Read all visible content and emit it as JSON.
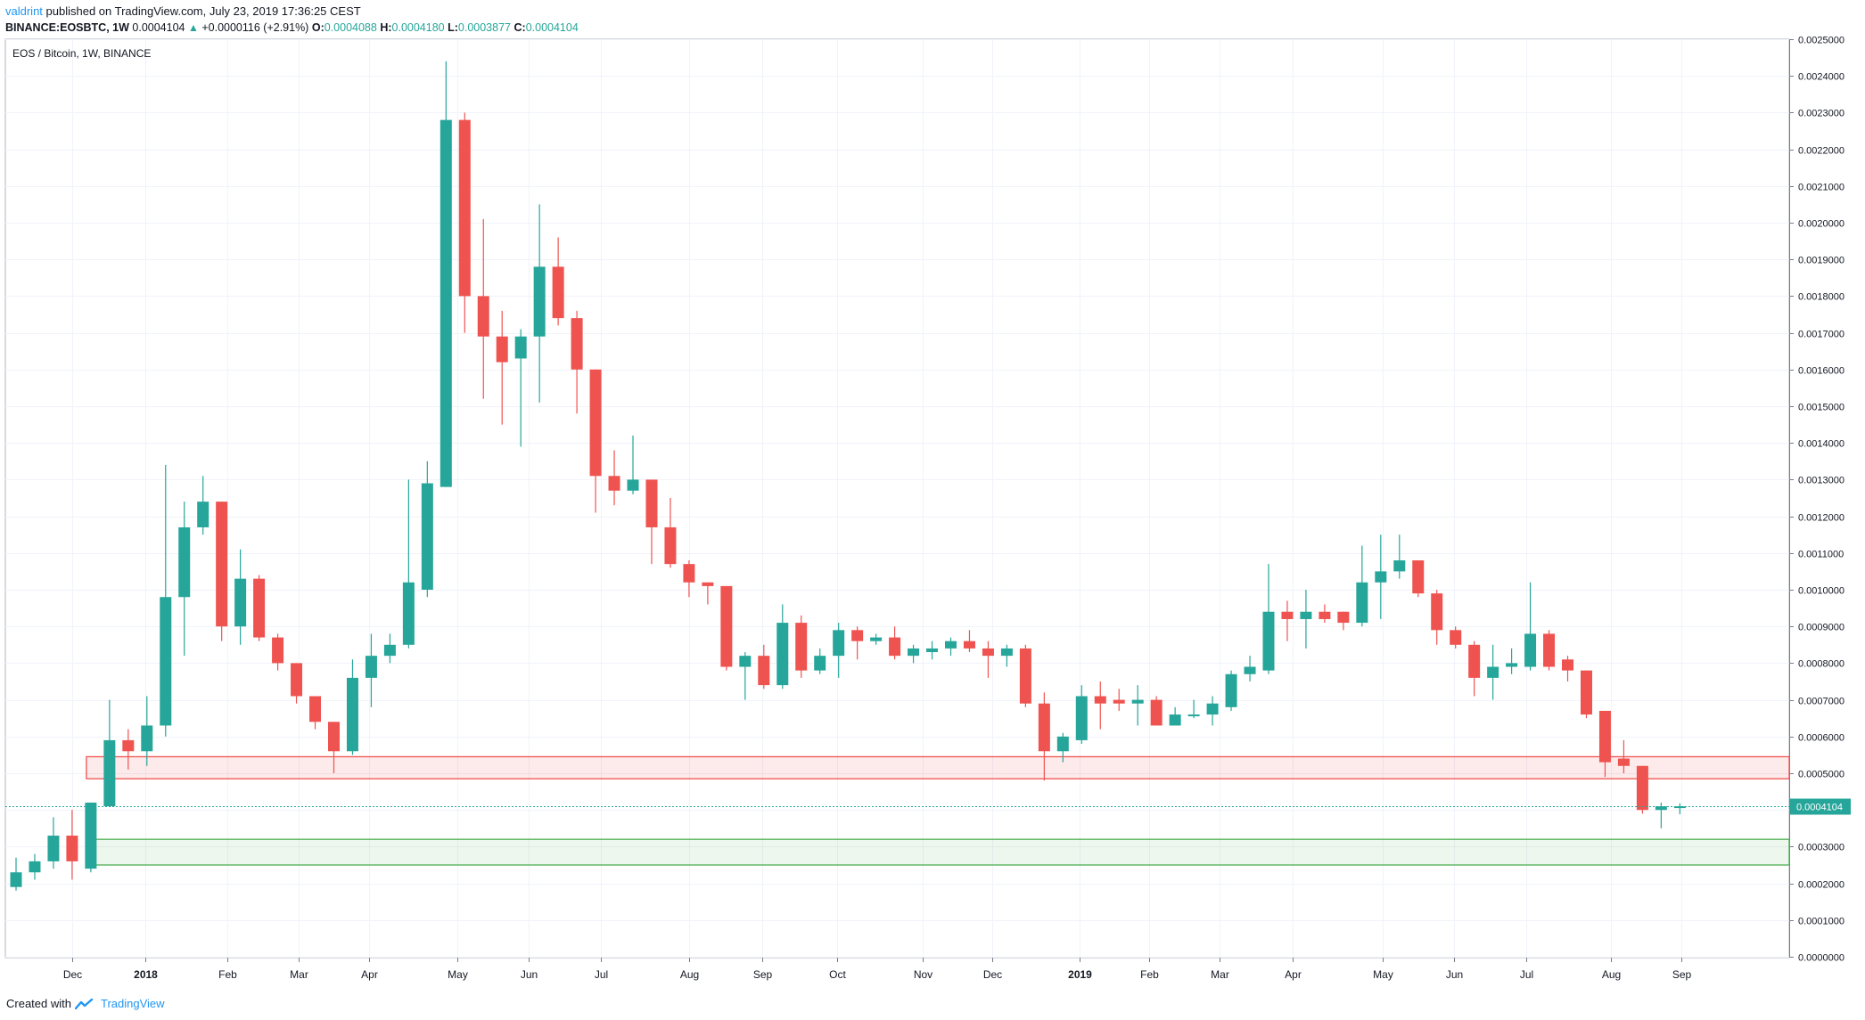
{
  "header": {
    "user": "valdrint",
    "published_text": " published on TradingView.com, July 23, 2019 17:36:25 CEST",
    "symbol": "BINANCE:EOSBTC, 1W",
    "last": "0.0004104",
    "change": "+0.0000116 (+2.91%)",
    "o_label": "O:",
    "o": "0.0004088",
    "h_label": "H:",
    "h": "0.0004180",
    "l_label": "L:",
    "l": "0.0003877",
    "c_label": "C:",
    "c": "0.0004104"
  },
  "footer": {
    "created_with": "Created with",
    "brand": "TradingView"
  },
  "colors": {
    "up": "#26a69a",
    "down": "#ef5350",
    "grid": "#f0f3fa",
    "axis": "#787b86",
    "price_line": "#26a69a",
    "resistance": "#ef5350",
    "support": "#4caf50"
  },
  "chart_data": {
    "type": "candlestick",
    "title": "EOS / Bitcoin, 1W, BINANCE",
    "ylim": [
      0,
      0.0025
    ],
    "y_ticks": [
      "0.0025000",
      "0.0024000",
      "0.0023000",
      "0.0022000",
      "0.0021000",
      "0.0020000",
      "0.0019000",
      "0.0018000",
      "0.0017000",
      "0.0016000",
      "0.0015000",
      "0.0014000",
      "0.0013000",
      "0.0012000",
      "0.0011000",
      "0.0010000",
      "0.0009000",
      "0.0008000",
      "0.0007000",
      "0.0006000",
      "0.0005000",
      "0.0004000",
      "0.0003000",
      "0.0002000",
      "0.0001000",
      "0.0000000"
    ],
    "x_ticks": [
      {
        "label": "Dec",
        "index": 3.0
      },
      {
        "label": "2018",
        "index": 6.9
      },
      {
        "label": "Feb",
        "index": 11.3
      },
      {
        "label": "Mar",
        "index": 15.1
      },
      {
        "label": "Apr",
        "index": 18.9
      },
      {
        "label": "May",
        "index": 23.6
      },
      {
        "label": "Jun",
        "index": 27.4
      },
      {
        "label": "Jul",
        "index": 31.3
      },
      {
        "label": "Aug",
        "index": 36.0
      },
      {
        "label": "Sep",
        "index": 39.9
      },
      {
        "label": "Oct",
        "index": 43.9
      },
      {
        "label": "Nov",
        "index": 48.5
      },
      {
        "label": "Dec",
        "index": 52.2
      },
      {
        "label": "2019",
        "index": 56.9
      },
      {
        "label": "Feb",
        "index": 60.6
      },
      {
        "label": "Mar",
        "index": 64.4
      },
      {
        "label": "Apr",
        "index": 68.3
      },
      {
        "label": "May",
        "index": 73.1
      },
      {
        "label": "Jun",
        "index": 76.9
      },
      {
        "label": "Jul",
        "index": 80.8
      },
      {
        "label": "Aug",
        "index": 85.3
      },
      {
        "label": "Sep",
        "index": 89.1
      }
    ],
    "current_price": "0.0004104",
    "zones": [
      {
        "name": "resistance",
        "from": 0.000485,
        "to": 0.000545,
        "start_index": 4
      },
      {
        "name": "support",
        "from": 0.00025,
        "to": 0.00032,
        "start_index": 4
      }
    ],
    "candles": [
      [
        0.00019,
        0.00027,
        0.00018,
        0.00023
      ],
      [
        0.00023,
        0.00028,
        0.00021,
        0.00026
      ],
      [
        0.00026,
        0.00038,
        0.00024,
        0.00033
      ],
      [
        0.00033,
        0.0004,
        0.00021,
        0.00026
      ],
      [
        0.00024,
        0.00042,
        0.00023,
        0.00042
      ],
      [
        0.00041,
        0.0007,
        0.00041,
        0.00059
      ],
      [
        0.00059,
        0.00062,
        0.00051,
        0.00056
      ],
      [
        0.00056,
        0.00071,
        0.00052,
        0.00063
      ],
      [
        0.00063,
        0.00134,
        0.0006,
        0.00098
      ],
      [
        0.00098,
        0.00124,
        0.00082,
        0.00117
      ],
      [
        0.00117,
        0.00131,
        0.00115,
        0.00124
      ],
      [
        0.00124,
        0.00124,
        0.00086,
        0.0009
      ],
      [
        0.0009,
        0.00111,
        0.00085,
        0.00103
      ],
      [
        0.00103,
        0.00104,
        0.00086,
        0.00087
      ],
      [
        0.00087,
        0.00088,
        0.00078,
        0.0008
      ],
      [
        0.0008,
        0.0008,
        0.00069,
        0.00071
      ],
      [
        0.00071,
        0.00071,
        0.00062,
        0.00064
      ],
      [
        0.00064,
        0.00064,
        0.0005,
        0.00056
      ],
      [
        0.00056,
        0.00081,
        0.00055,
        0.00076
      ],
      [
        0.00076,
        0.00088,
        0.00068,
        0.00082
      ],
      [
        0.00082,
        0.00088,
        0.0008,
        0.00085
      ],
      [
        0.00085,
        0.0013,
        0.00084,
        0.00102
      ],
      [
        0.001,
        0.00135,
        0.00098,
        0.00129
      ],
      [
        0.00128,
        0.00244,
        0.00128,
        0.00228
      ],
      [
        0.00228,
        0.0023,
        0.0017,
        0.0018
      ],
      [
        0.0018,
        0.00201,
        0.00152,
        0.00169
      ],
      [
        0.00169,
        0.00176,
        0.00145,
        0.00162
      ],
      [
        0.00163,
        0.00171,
        0.00139,
        0.00169
      ],
      [
        0.00169,
        0.00205,
        0.00151,
        0.00188
      ],
      [
        0.00188,
        0.00196,
        0.00172,
        0.00174
      ],
      [
        0.00174,
        0.00176,
        0.00148,
        0.0016
      ],
      [
        0.0016,
        0.0016,
        0.00121,
        0.00131
      ],
      [
        0.00131,
        0.00138,
        0.00123,
        0.00127
      ],
      [
        0.00127,
        0.00142,
        0.00126,
        0.0013
      ],
      [
        0.0013,
        0.0013,
        0.00107,
        0.00117
      ],
      [
        0.00117,
        0.00125,
        0.00106,
        0.00107
      ],
      [
        0.00107,
        0.00108,
        0.00098,
        0.00102
      ],
      [
        0.00102,
        0.00102,
        0.00096,
        0.00101
      ],
      [
        0.00101,
        0.00101,
        0.00078,
        0.00079
      ],
      [
        0.00079,
        0.00083,
        0.0007,
        0.00082
      ],
      [
        0.00082,
        0.00085,
        0.00073,
        0.00074
      ],
      [
        0.00074,
        0.00096,
        0.00073,
        0.00091
      ],
      [
        0.00091,
        0.00093,
        0.00076,
        0.00078
      ],
      [
        0.00078,
        0.00084,
        0.00077,
        0.00082
      ],
      [
        0.00082,
        0.00091,
        0.00076,
        0.00089
      ],
      [
        0.00089,
        0.0009,
        0.00081,
        0.00086
      ],
      [
        0.00086,
        0.00088,
        0.00085,
        0.00087
      ],
      [
        0.00087,
        0.0009,
        0.00081,
        0.00082
      ],
      [
        0.00082,
        0.00085,
        0.0008,
        0.00084
      ],
      [
        0.00083,
        0.00086,
        0.00081,
        0.00084
      ],
      [
        0.00084,
        0.00087,
        0.00082,
        0.00086
      ],
      [
        0.00086,
        0.00089,
        0.00083,
        0.00084
      ],
      [
        0.00084,
        0.00086,
        0.00076,
        0.00082
      ],
      [
        0.00082,
        0.00085,
        0.00079,
        0.00084
      ],
      [
        0.00084,
        0.00085,
        0.00068,
        0.00069
      ],
      [
        0.00069,
        0.00072,
        0.00048,
        0.00056
      ],
      [
        0.00056,
        0.00061,
        0.00053,
        0.0006
      ],
      [
        0.00059,
        0.00074,
        0.00058,
        0.00071
      ],
      [
        0.00071,
        0.00075,
        0.00062,
        0.00069
      ],
      [
        0.0007,
        0.00073,
        0.00067,
        0.00069
      ],
      [
        0.00069,
        0.00074,
        0.00063,
        0.0007
      ],
      [
        0.0007,
        0.00071,
        0.00063,
        0.00063
      ],
      [
        0.00063,
        0.00068,
        0.00063,
        0.00066
      ],
      [
        0.00066,
        0.0007,
        0.00065,
        0.00066
      ],
      [
        0.00066,
        0.00071,
        0.00063,
        0.00069
      ],
      [
        0.00068,
        0.00078,
        0.00067,
        0.00077
      ],
      [
        0.00077,
        0.00082,
        0.00075,
        0.00079
      ],
      [
        0.00078,
        0.00107,
        0.00077,
        0.00094
      ],
      [
        0.00094,
        0.00097,
        0.00086,
        0.00092
      ],
      [
        0.00092,
        0.001,
        0.00084,
        0.00094
      ],
      [
        0.00094,
        0.00096,
        0.00091,
        0.00092
      ],
      [
        0.00094,
        0.00094,
        0.00089,
        0.00091
      ],
      [
        0.00091,
        0.00112,
        0.0009,
        0.00102
      ],
      [
        0.00102,
        0.00115,
        0.00092,
        0.00105
      ],
      [
        0.00105,
        0.00115,
        0.00103,
        0.00108
      ],
      [
        0.00108,
        0.00108,
        0.00098,
        0.00099
      ],
      [
        0.00099,
        0.001,
        0.00085,
        0.00089
      ],
      [
        0.00089,
        0.0009,
        0.00084,
        0.00085
      ],
      [
        0.00085,
        0.00086,
        0.00071,
        0.00076
      ],
      [
        0.00076,
        0.00085,
        0.0007,
        0.00079
      ],
      [
        0.00079,
        0.00084,
        0.00077,
        0.0008
      ],
      [
        0.00079,
        0.00102,
        0.00078,
        0.00088
      ],
      [
        0.00088,
        0.00089,
        0.00078,
        0.00079
      ],
      [
        0.00081,
        0.00082,
        0.00075,
        0.00078
      ],
      [
        0.00078,
        0.00078,
        0.00065,
        0.00066
      ],
      [
        0.00067,
        0.00067,
        0.00049,
        0.00053
      ],
      [
        0.00054,
        0.00059,
        0.0005,
        0.00052
      ],
      [
        0.00052,
        0.00052,
        0.00039,
        0.0004
      ],
      [
        0.0004,
        0.00042,
        0.00035,
        0.00041
      ],
      [
        0.000409,
        0.000418,
        0.000388,
        0.00041
      ]
    ]
  }
}
